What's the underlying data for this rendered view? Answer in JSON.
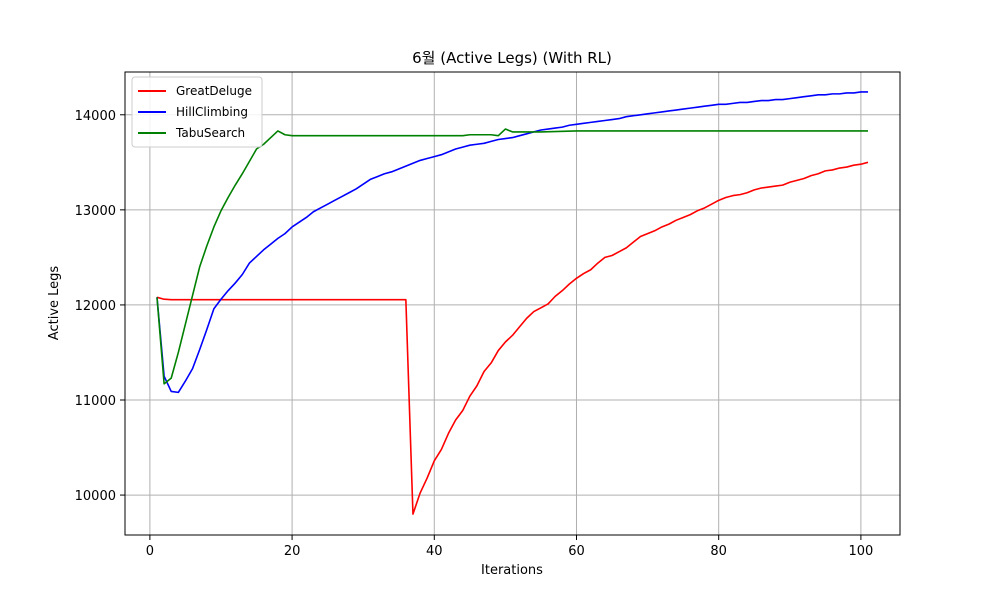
{
  "chart_data": {
    "type": "line",
    "title": "6월 (Active Legs) (With RL)",
    "xlabel": "Iterations",
    "ylabel": "Active Legs",
    "xlim": [
      -3.5,
      105.5
    ],
    "ylim": [
      9580,
      14450
    ],
    "xticks": [
      0,
      20,
      40,
      60,
      80,
      100
    ],
    "yticks": [
      10000,
      11000,
      12000,
      13000,
      14000
    ],
    "grid": true,
    "legend_position": "top-left",
    "series": [
      {
        "name": "GreatDeluge",
        "color": "#ff0000",
        "points": [
          [
            1,
            12080
          ],
          [
            2,
            12060
          ],
          [
            3,
            12055
          ],
          [
            10,
            12055
          ],
          [
            20,
            12055
          ],
          [
            30,
            12055
          ],
          [
            36,
            12055
          ],
          [
            37,
            9800
          ],
          [
            38,
            10020
          ],
          [
            39,
            10180
          ],
          [
            40,
            10360
          ],
          [
            41,
            10480
          ],
          [
            42,
            10650
          ],
          [
            43,
            10790
          ],
          [
            44,
            10890
          ],
          [
            45,
            11040
          ],
          [
            46,
            11150
          ],
          [
            47,
            11300
          ],
          [
            48,
            11390
          ],
          [
            49,
            11520
          ],
          [
            50,
            11610
          ],
          [
            51,
            11680
          ],
          [
            52,
            11770
          ],
          [
            53,
            11860
          ],
          [
            54,
            11930
          ],
          [
            55,
            11970
          ],
          [
            56,
            12010
          ],
          [
            57,
            12090
          ],
          [
            58,
            12150
          ],
          [
            59,
            12220
          ],
          [
            60,
            12280
          ],
          [
            61,
            12330
          ],
          [
            62,
            12370
          ],
          [
            63,
            12440
          ],
          [
            64,
            12500
          ],
          [
            65,
            12520
          ],
          [
            66,
            12560
          ],
          [
            67,
            12600
          ],
          [
            68,
            12660
          ],
          [
            69,
            12720
          ],
          [
            70,
            12750
          ],
          [
            71,
            12780
          ],
          [
            72,
            12820
          ],
          [
            73,
            12850
          ],
          [
            74,
            12890
          ],
          [
            75,
            12920
          ],
          [
            76,
            12950
          ],
          [
            77,
            12990
          ],
          [
            78,
            13020
          ],
          [
            79,
            13060
          ],
          [
            80,
            13100
          ],
          [
            81,
            13130
          ],
          [
            82,
            13150
          ],
          [
            83,
            13160
          ],
          [
            84,
            13180
          ],
          [
            85,
            13210
          ],
          [
            86,
            13230
          ],
          [
            87,
            13240
          ],
          [
            88,
            13250
          ],
          [
            89,
            13260
          ],
          [
            90,
            13290
          ],
          [
            91,
            13310
          ],
          [
            92,
            13330
          ],
          [
            93,
            13360
          ],
          [
            94,
            13380
          ],
          [
            95,
            13410
          ],
          [
            96,
            13420
          ],
          [
            97,
            13440
          ],
          [
            98,
            13450
          ],
          [
            99,
            13470
          ],
          [
            100,
            13480
          ],
          [
            101,
            13500
          ]
        ]
      },
      {
        "name": "HillClimbing",
        "color": "#0000ff",
        "points": [
          [
            1,
            12080
          ],
          [
            2,
            11250
          ],
          [
            3,
            11090
          ],
          [
            4,
            11080
          ],
          [
            5,
            11200
          ],
          [
            6,
            11330
          ],
          [
            7,
            11530
          ],
          [
            8,
            11740
          ],
          [
            9,
            11960
          ],
          [
            10,
            12060
          ],
          [
            11,
            12150
          ],
          [
            12,
            12230
          ],
          [
            13,
            12320
          ],
          [
            14,
            12440
          ],
          [
            15,
            12510
          ],
          [
            16,
            12580
          ],
          [
            17,
            12640
          ],
          [
            18,
            12700
          ],
          [
            19,
            12750
          ],
          [
            20,
            12820
          ],
          [
            21,
            12870
          ],
          [
            22,
            12920
          ],
          [
            23,
            12980
          ],
          [
            24,
            13020
          ],
          [
            25,
            13060
          ],
          [
            26,
            13100
          ],
          [
            27,
            13140
          ],
          [
            28,
            13180
          ],
          [
            29,
            13220
          ],
          [
            30,
            13270
          ],
          [
            31,
            13320
          ],
          [
            32,
            13350
          ],
          [
            33,
            13380
          ],
          [
            34,
            13400
          ],
          [
            35,
            13430
          ],
          [
            36,
            13460
          ],
          [
            37,
            13490
          ],
          [
            38,
            13520
          ],
          [
            39,
            13540
          ],
          [
            40,
            13560
          ],
          [
            41,
            13580
          ],
          [
            42,
            13610
          ],
          [
            43,
            13640
          ],
          [
            44,
            13660
          ],
          [
            45,
            13680
          ],
          [
            46,
            13690
          ],
          [
            47,
            13700
          ],
          [
            48,
            13720
          ],
          [
            49,
            13740
          ],
          [
            50,
            13750
          ],
          [
            51,
            13760
          ],
          [
            52,
            13780
          ],
          [
            53,
            13800
          ],
          [
            54,
            13820
          ],
          [
            55,
            13840
          ],
          [
            56,
            13850
          ],
          [
            57,
            13860
          ],
          [
            58,
            13870
          ],
          [
            59,
            13890
          ],
          [
            60,
            13900
          ],
          [
            61,
            13910
          ],
          [
            62,
            13920
          ],
          [
            63,
            13930
          ],
          [
            64,
            13940
          ],
          [
            65,
            13950
          ],
          [
            66,
            13960
          ],
          [
            67,
            13980
          ],
          [
            68,
            13990
          ],
          [
            69,
            14000
          ],
          [
            70,
            14010
          ],
          [
            71,
            14020
          ],
          [
            72,
            14030
          ],
          [
            73,
            14040
          ],
          [
            74,
            14050
          ],
          [
            75,
            14060
          ],
          [
            76,
            14070
          ],
          [
            77,
            14080
          ],
          [
            78,
            14090
          ],
          [
            79,
            14100
          ],
          [
            80,
            14110
          ],
          [
            81,
            14110
          ],
          [
            82,
            14120
          ],
          [
            83,
            14130
          ],
          [
            84,
            14130
          ],
          [
            85,
            14140
          ],
          [
            86,
            14150
          ],
          [
            87,
            14150
          ],
          [
            88,
            14160
          ],
          [
            89,
            14160
          ],
          [
            90,
            14170
          ],
          [
            91,
            14180
          ],
          [
            92,
            14190
          ],
          [
            93,
            14200
          ],
          [
            94,
            14210
          ],
          [
            95,
            14210
          ],
          [
            96,
            14220
          ],
          [
            97,
            14220
          ],
          [
            98,
            14230
          ],
          [
            99,
            14230
          ],
          [
            100,
            14240
          ],
          [
            101,
            14240
          ]
        ]
      },
      {
        "name": "TabuSearch",
        "color": "#008000",
        "points": [
          [
            1,
            12080
          ],
          [
            2,
            11170
          ],
          [
            3,
            11230
          ],
          [
            4,
            11500
          ],
          [
            5,
            11800
          ],
          [
            6,
            12100
          ],
          [
            7,
            12400
          ],
          [
            8,
            12620
          ],
          [
            9,
            12820
          ],
          [
            10,
            12990
          ],
          [
            11,
            13130
          ],
          [
            12,
            13260
          ],
          [
            13,
            13380
          ],
          [
            14,
            13510
          ],
          [
            15,
            13640
          ],
          [
            16,
            13690
          ],
          [
            17,
            13760
          ],
          [
            18,
            13830
          ],
          [
            19,
            13790
          ],
          [
            20,
            13780
          ],
          [
            30,
            13780
          ],
          [
            40,
            13780
          ],
          [
            44,
            13780
          ],
          [
            45,
            13790
          ],
          [
            47,
            13790
          ],
          [
            48,
            13790
          ],
          [
            49,
            13780
          ],
          [
            50,
            13850
          ],
          [
            51,
            13820
          ],
          [
            54,
            13820
          ],
          [
            55,
            13820
          ],
          [
            60,
            13830
          ],
          [
            70,
            13830
          ],
          [
            80,
            13830
          ],
          [
            90,
            13830
          ],
          [
            101,
            13830
          ]
        ]
      }
    ]
  }
}
